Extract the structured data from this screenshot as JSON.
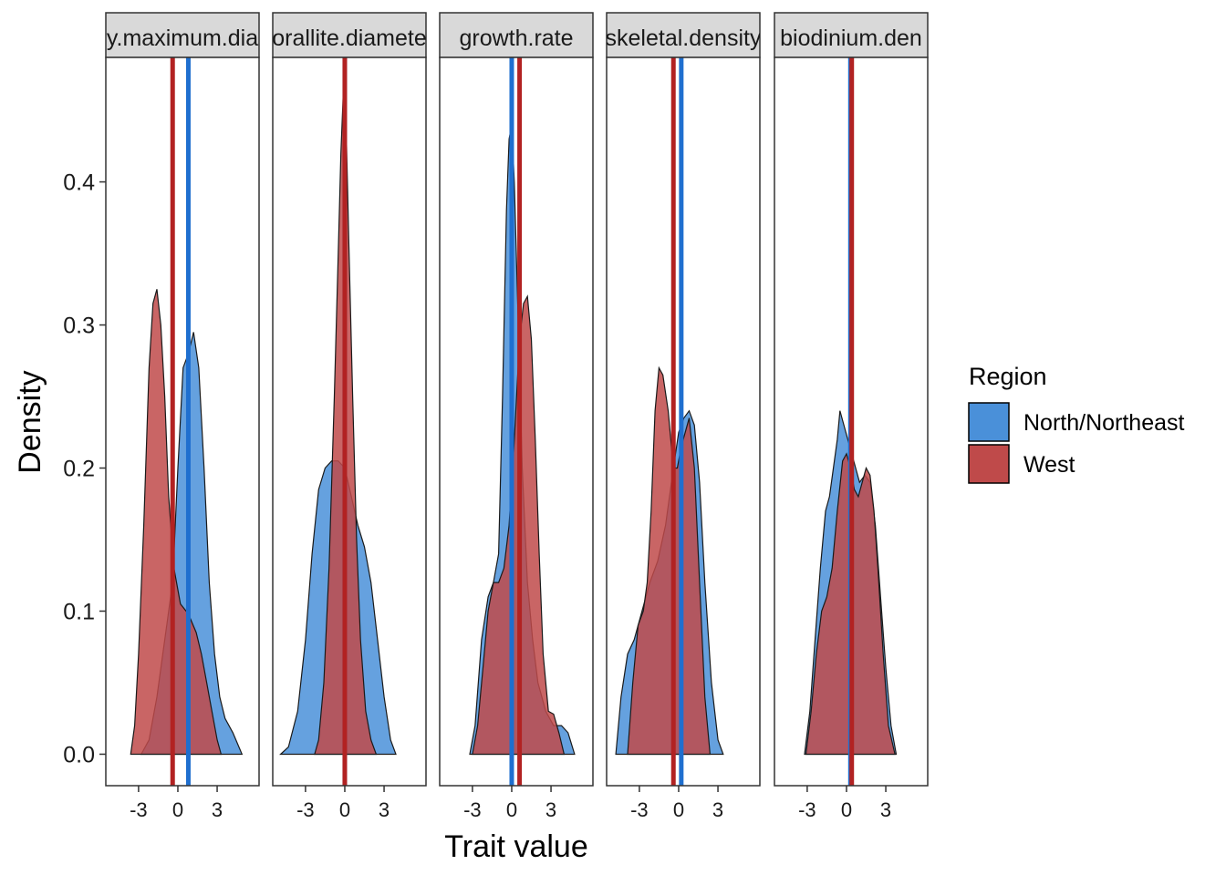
{
  "chart_data": {
    "type": "density",
    "xlabel": "Trait value",
    "ylabel": "Density",
    "ylim": [
      -0.022,
      0.487
    ],
    "y_ticks": [
      0.0,
      0.1,
      0.2,
      0.3,
      0.4
    ],
    "y_tick_labels": [
      "0.0",
      "0.1",
      "0.2",
      "0.3",
      "0.4"
    ],
    "xlim": [
      -5.5,
      6.2
    ],
    "x_ticks": [
      -3,
      0,
      3
    ],
    "x_tick_labels": [
      "-3",
      "0",
      "3"
    ],
    "grid": false,
    "legend": {
      "title": "Region",
      "position": "right",
      "entries": [
        {
          "name": "North/Northeast",
          "fill": "#4a90d9",
          "line": "#1f6fcf"
        },
        {
          "name": "West",
          "fill": "#bf4a4a",
          "line": "#b22222"
        }
      ]
    },
    "facets": [
      {
        "label": "colony.maximum.diameter",
        "label_visible": "y.maximum.dia",
        "means": {
          "North/Northeast": 0.8,
          "West": -0.4
        },
        "series": [
          {
            "name": "North/Northeast",
            "x": [
              -2.8,
              -2.2,
              -1.6,
              -1.0,
              -0.4,
              0.0,
              0.4,
              0.8,
              1.2,
              1.6,
              2.0,
              2.4,
              2.8,
              3.2,
              3.6,
              4.2,
              4.9
            ],
            "y": [
              0.0,
              0.01,
              0.04,
              0.08,
              0.12,
              0.2,
              0.27,
              0.28,
              0.295,
              0.27,
              0.2,
              0.12,
              0.07,
              0.04,
              0.025,
              0.015,
              0.0
            ]
          },
          {
            "name": "West",
            "x": [
              -3.6,
              -3.3,
              -3.0,
              -2.6,
              -2.2,
              -1.9,
              -1.6,
              -1.3,
              -1.0,
              -0.7,
              -0.3,
              0.2,
              0.8,
              1.4,
              1.8,
              2.2,
              2.6,
              3.0,
              3.3
            ],
            "y": [
              0.0,
              0.02,
              0.07,
              0.16,
              0.27,
              0.315,
              0.325,
              0.3,
              0.25,
              0.18,
              0.13,
              0.105,
              0.098,
              0.085,
              0.07,
              0.05,
              0.03,
              0.01,
              0.0
            ]
          }
        ]
      },
      {
        "label": "corallite.diameter",
        "label_visible": "orallite.diamete",
        "means": {
          "North/Northeast": 0.0,
          "West": 0.0
        },
        "series": [
          {
            "name": "North/Northeast",
            "x": [
              -4.9,
              -4.3,
              -3.6,
              -3.0,
              -2.5,
              -2.0,
              -1.5,
              -1.0,
              -0.5,
              0.0,
              0.5,
              1.0,
              1.5,
              2.0,
              2.5,
              3.0,
              3.5,
              3.9
            ],
            "y": [
              0.0,
              0.005,
              0.03,
              0.08,
              0.14,
              0.185,
              0.2,
              0.205,
              0.205,
              0.2,
              0.18,
              0.16,
              0.145,
              0.12,
              0.08,
              0.04,
              0.01,
              0.0
            ]
          },
          {
            "name": "West",
            "x": [
              -2.3,
              -2.0,
              -1.6,
              -1.2,
              -0.8,
              -0.5,
              -0.3,
              -0.1,
              0.1,
              0.3,
              0.6,
              0.9,
              1.2,
              1.6,
              2.0,
              2.4
            ],
            "y": [
              0.0,
              0.01,
              0.05,
              0.13,
              0.25,
              0.35,
              0.42,
              0.465,
              0.44,
              0.36,
              0.25,
              0.15,
              0.08,
              0.03,
              0.01,
              0.0
            ]
          }
        ]
      },
      {
        "label": "growth.rate",
        "label_visible": "growth.rate",
        "means": {
          "North/Northeast": 0.0,
          "West": 0.6
        },
        "series": [
          {
            "name": "North/Northeast",
            "x": [
              -3.2,
              -2.8,
              -2.3,
              -1.8,
              -1.4,
              -1.0,
              -0.7,
              -0.4,
              -0.2,
              0.0,
              0.2,
              0.5,
              0.8,
              1.2,
              1.6,
              2.0,
              2.6,
              3.2,
              3.8,
              4.3,
              4.8
            ],
            "y": [
              0.0,
              0.02,
              0.08,
              0.11,
              0.12,
              0.14,
              0.25,
              0.38,
              0.43,
              0.44,
              0.4,
              0.3,
              0.2,
              0.12,
              0.08,
              0.05,
              0.03,
              0.02,
              0.02,
              0.015,
              0.0
            ]
          },
          {
            "name": "West",
            "x": [
              -3.0,
              -2.6,
              -2.2,
              -1.8,
              -1.4,
              -1.0,
              -0.6,
              -0.2,
              0.2,
              0.6,
              0.9,
              1.2,
              1.5,
              1.8,
              2.1,
              2.4,
              2.8,
              3.2,
              3.6,
              4.0
            ],
            "y": [
              0.0,
              0.02,
              0.06,
              0.1,
              0.12,
              0.12,
              0.13,
              0.16,
              0.22,
              0.29,
              0.315,
              0.32,
              0.29,
              0.22,
              0.14,
              0.07,
              0.03,
              0.028,
              0.015,
              0.0
            ]
          }
        ]
      },
      {
        "label": "skeletal.density",
        "label_visible": "skeletal.density",
        "means": {
          "North/Northeast": 0.2,
          "West": -0.4
        },
        "series": [
          {
            "name": "North/Northeast",
            "x": [
              -4.8,
              -4.4,
              -3.9,
              -3.4,
              -2.8,
              -2.2,
              -1.6,
              -1.0,
              -0.4,
              0.0,
              0.4,
              0.8,
              1.2,
              1.6,
              2.0,
              2.5,
              3.0,
              3.4
            ],
            "y": [
              0.0,
              0.04,
              0.07,
              0.08,
              0.1,
              0.12,
              0.135,
              0.16,
              0.2,
              0.225,
              0.235,
              0.24,
              0.23,
              0.19,
              0.12,
              0.05,
              0.01,
              0.0
            ]
          },
          {
            "name": "West",
            "x": [
              -3.9,
              -3.5,
              -3.1,
              -2.7,
              -2.4,
              -2.1,
              -1.8,
              -1.5,
              -1.2,
              -0.8,
              -0.4,
              -0.1,
              0.2,
              0.5,
              0.8,
              1.2,
              1.6,
              2.0,
              2.4
            ],
            "y": [
              0.0,
              0.05,
              0.09,
              0.1,
              0.12,
              0.17,
              0.24,
              0.27,
              0.265,
              0.24,
              0.2,
              0.2,
              0.215,
              0.225,
              0.235,
              0.2,
              0.12,
              0.04,
              0.0
            ]
          }
        ]
      },
      {
        "label": "symbiodinium.density",
        "label_visible": "biodinium.den",
        "means": {
          "North/Northeast": 0.3,
          "West": 0.4
        },
        "series": [
          {
            "name": "North/Northeast",
            "x": [
              -3.2,
              -2.8,
              -2.4,
              -2.0,
              -1.6,
              -1.3,
              -1.0,
              -0.7,
              -0.5,
              -0.2,
              0.1,
              0.4,
              0.7,
              1.0,
              1.4,
              1.8,
              2.2,
              2.6,
              3.0,
              3.4,
              3.8
            ],
            "y": [
              0.0,
              0.03,
              0.08,
              0.13,
              0.17,
              0.18,
              0.2,
              0.22,
              0.24,
              0.23,
              0.22,
              0.21,
              0.2,
              0.19,
              0.195,
              0.19,
              0.16,
              0.11,
              0.06,
              0.02,
              0.0
            ]
          },
          {
            "name": "West",
            "x": [
              -3.1,
              -2.7,
              -2.3,
              -1.9,
              -1.5,
              -1.1,
              -0.7,
              -0.3,
              0.0,
              0.3,
              0.6,
              0.9,
              1.2,
              1.5,
              1.8,
              2.1,
              2.4,
              2.8,
              3.2,
              3.7
            ],
            "y": [
              0.0,
              0.03,
              0.07,
              0.1,
              0.11,
              0.13,
              0.17,
              0.205,
              0.21,
              0.2,
              0.185,
              0.18,
              0.19,
              0.2,
              0.195,
              0.17,
              0.13,
              0.07,
              0.02,
              0.0
            ]
          }
        ]
      }
    ]
  }
}
